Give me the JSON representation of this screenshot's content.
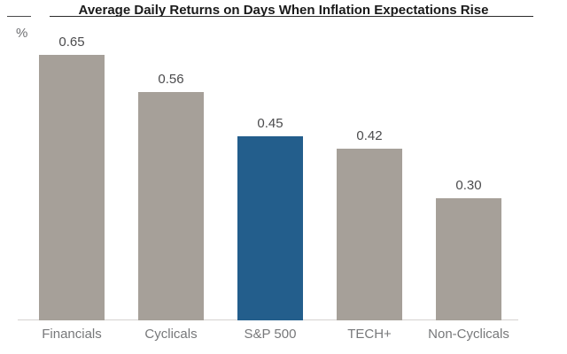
{
  "chart_data": {
    "type": "bar",
    "title": "Average Daily Returns on Days When Inflation Expectations Rise",
    "ylabel": "%",
    "categories": [
      "Financials",
      "Cyclicals",
      "S&P 500",
      "TECH+",
      "Non-Cyclicals"
    ],
    "values": [
      0.65,
      0.56,
      0.45,
      0.42,
      0.3
    ],
    "value_labels": [
      "0.65",
      "0.56",
      "0.45",
      "0.42",
      "0.30"
    ],
    "bar_colors": [
      "#a6a099",
      "#a6a099",
      "#235e8c",
      "#a6a099",
      "#a6a099"
    ],
    "highlighted_category": "S&P 500",
    "ylim": [
      0,
      0.75
    ],
    "grid": false,
    "legend": false,
    "data_labels": true,
    "colors": {
      "bar_default": "#a6a099",
      "bar_highlight": "#235e8c",
      "title": "#1a1a1a",
      "value_label": "#4b4b4d",
      "category_label": "#77787a",
      "unit_label": "#6e6f72",
      "baseline": "#d6d3d0"
    }
  }
}
